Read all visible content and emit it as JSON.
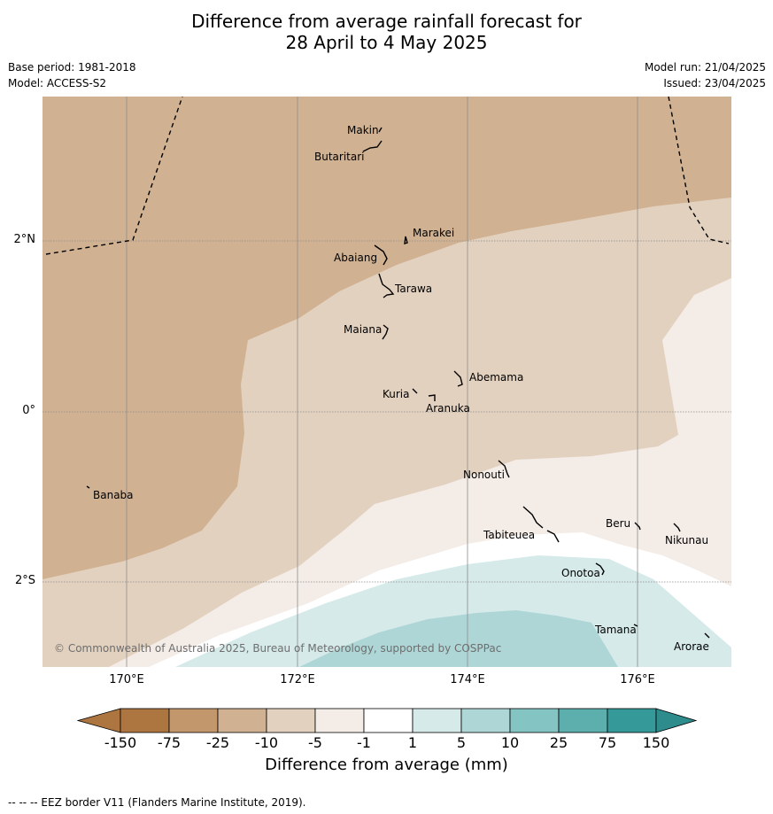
{
  "title": {
    "line1": "Difference from average rainfall forecast for",
    "line2": "28 April to 4 May 2025"
  },
  "meta": {
    "base_period": "Base period: 1981-2018",
    "model": "Model: ACCESS-S2",
    "model_run": "Model run: 21/04/2025",
    "issued": "Issued: 23/04/2025"
  },
  "axes": {
    "lat_labels": [
      "2°N",
      "0°",
      "2°S"
    ],
    "lon_labels": [
      "170°E",
      "172°E",
      "174°E",
      "176°E"
    ]
  },
  "places": [
    "Makin",
    "Butaritari",
    "Marakei",
    "Abaiang",
    "Tarawa",
    "Maiana",
    "Abemama",
    "Kuria",
    "Aranuka",
    "Banaba",
    "Nonouti",
    "Tabiteuea",
    "Beru",
    "Nikunau",
    "Onotoa",
    "Tamana",
    "Arorae"
  ],
  "copyright": "© Commonwealth of Australia 2025, Bureau of Meteorology, supported by COSPPac",
  "colorbar": {
    "ticks": [
      "-150",
      "-75",
      "-25",
      "-10",
      "-5",
      "-1",
      "1",
      "5",
      "10",
      "25",
      "75",
      "150"
    ],
    "colors": [
      "#ad7641",
      "#c2976b",
      "#d0b192",
      "#e3d1bf",
      "#f4ece7",
      "#ffffff",
      "#d6eaea",
      "#aed6d6",
      "#84c5c3",
      "#5dafae",
      "#35999a"
    ],
    "title": "Difference from average (mm)"
  },
  "footnote": "--  --  -- EEZ border V11 (Flanders Marine Institute, 2019)."
}
